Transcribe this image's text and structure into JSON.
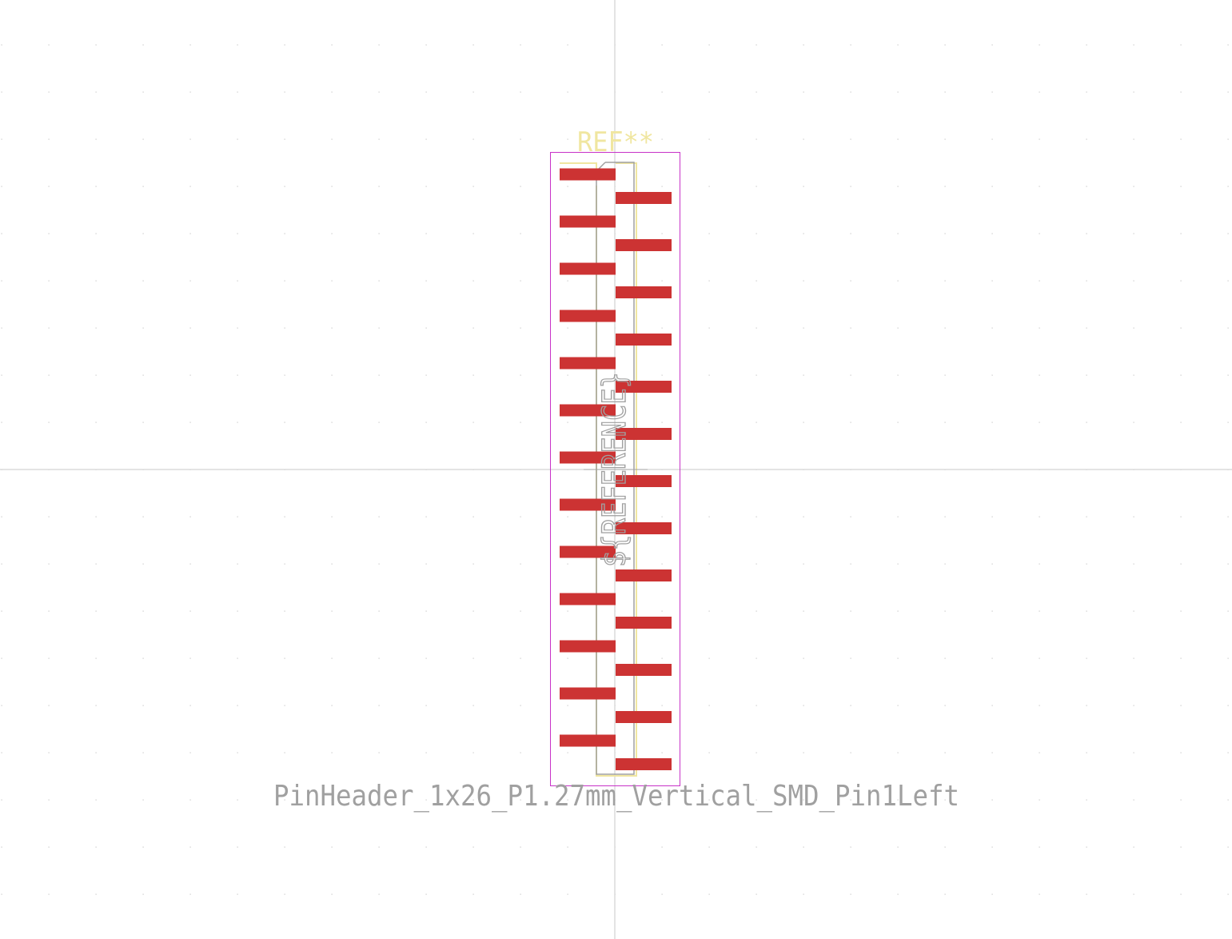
{
  "footprint": {
    "reference": "REF**",
    "reference_placeholder": "${REFERENCE}",
    "value": "PinHeader_1x26_P1.27mm_Vertical_SMD_Pin1Left",
    "pin_count": 26,
    "pitch_mm": 1.27,
    "orientation": "Vertical",
    "pin1_side": "left"
  },
  "colors": {
    "background": "#ffffff",
    "grid_dot": "#c8c8c8",
    "crosshair": "#c8c8c8",
    "pad": "#cc3333",
    "silkscreen": "#f0e6a0",
    "courtyard": "#c832c8",
    "fab": "#a0a0a0",
    "reference_text": "#f0e6a0",
    "value_text": "#a0a0a0"
  }
}
